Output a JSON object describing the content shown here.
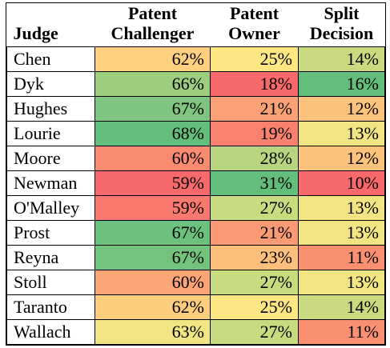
{
  "chart_data": {
    "type": "table",
    "headers": {
      "judge": "Judge",
      "challenger_line1": "Patent",
      "challenger_line2": "Challenger",
      "owner_line1": "Patent",
      "owner_line2": "Owner",
      "split_line1": "Split",
      "split_line2": "Decision"
    },
    "rows": [
      {
        "judge": "Chen",
        "challenger": "62%",
        "owner": "25%",
        "split": "14%",
        "colors": {
          "challenger": "#fed07f",
          "owner": "#fee683",
          "split": "#c9db7e"
        }
      },
      {
        "judge": "Dyk",
        "challenger": "66%",
        "owner": "18%",
        "split": "16%",
        "colors": {
          "challenger": "#9dcd7f",
          "owner": "#f8696b",
          "split": "#63be7b"
        }
      },
      {
        "judge": "Hughes",
        "challenger": "67%",
        "owner": "21%",
        "split": "12%",
        "colors": {
          "challenger": "#80c57f",
          "owner": "#fba176",
          "split": "#fdc27c"
        }
      },
      {
        "judge": "Lourie",
        "challenger": "68%",
        "owner": "19%",
        "split": "13%",
        "colors": {
          "challenger": "#63be7b",
          "owner": "#f9826f",
          "split": "#f0e582"
        }
      },
      {
        "judge": "Moore",
        "challenger": "60%",
        "owner": "28%",
        "split": "12%",
        "colors": {
          "challenger": "#fa8b71",
          "owner": "#b6d57e",
          "split": "#fdc27c"
        }
      },
      {
        "judge": "Newman",
        "challenger": "59%",
        "owner": "31%",
        "split": "10%",
        "colors": {
          "challenger": "#f8696b",
          "owner": "#63be7b",
          "split": "#f8696b"
        }
      },
      {
        "judge": "O'Malley",
        "challenger": "59%",
        "owner": "27%",
        "split": "13%",
        "colors": {
          "challenger": "#f9796e",
          "owner": "#c7db7f",
          "split": "#f0e582"
        }
      },
      {
        "judge": "Prost",
        "challenger": "67%",
        "owner": "21%",
        "split": "13%",
        "colors": {
          "challenger": "#6cc17c",
          "owner": "#fa9a74",
          "split": "#f0e582"
        }
      },
      {
        "judge": "Reyna",
        "challenger": "67%",
        "owner": "23%",
        "split": "11%",
        "colors": {
          "challenger": "#74c37c",
          "owner": "#fdbf7b",
          "split": "#fa8f72"
        }
      },
      {
        "judge": "Stoll",
        "challenger": "60%",
        "owner": "27%",
        "split": "13%",
        "colors": {
          "challenger": "#fba476",
          "owner": "#c7db7f",
          "split": "#f0e582"
        }
      },
      {
        "judge": "Taranto",
        "challenger": "62%",
        "owner": "25%",
        "split": "14%",
        "colors": {
          "challenger": "#fdcd7e",
          "owner": "#fee683",
          "split": "#c9db7e"
        }
      },
      {
        "judge": "Wallach",
        "challenger": "63%",
        "owner": "27%",
        "split": "11%",
        "colors": {
          "challenger": "#f1e683",
          "owner": "#c7db7f",
          "split": "#fa8f72"
        }
      }
    ]
  }
}
